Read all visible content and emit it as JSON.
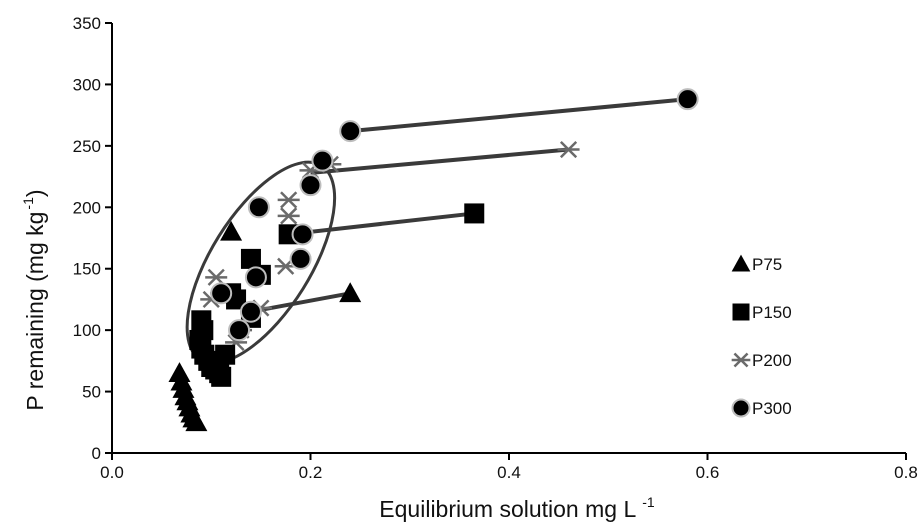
{
  "chart_data": {
    "type": "scatter",
    "xlabel": "Equilibrium solution mg L",
    "xlabel_sup": "-1",
    "ylabel": "P remaining (mg kg",
    "ylabel_sup": "-1",
    "ylabel_close": ")",
    "xlim": [
      0,
      0.8
    ],
    "ylim": [
      0,
      350
    ],
    "x_ticks": [
      "0.0",
      "0.2",
      "0.4",
      "0.6",
      "0.8"
    ],
    "y_ticks": [
      "0",
      "50",
      "100",
      "150",
      "200",
      "250",
      "300",
      "350"
    ],
    "grid": false,
    "legend_position": "right",
    "colors": {
      "marker": "#000000",
      "line": "#3a3a3a",
      "ellipse": "#3a3a3a",
      "star": "#6a6a6a"
    },
    "series": [
      {
        "name": "P75",
        "marker": "triangle",
        "points": [
          [
            0.068,
            65
          ],
          [
            0.07,
            58
          ],
          [
            0.072,
            52
          ],
          [
            0.074,
            46
          ],
          [
            0.076,
            42
          ],
          [
            0.078,
            37
          ],
          [
            0.08,
            32
          ],
          [
            0.082,
            28
          ],
          [
            0.085,
            25
          ],
          [
            0.12,
            180
          ],
          [
            0.24,
            130
          ]
        ]
      },
      {
        "name": "P150",
        "marker": "square",
        "points": [
          [
            0.09,
            108
          ],
          [
            0.092,
            100
          ],
          [
            0.088,
            92
          ],
          [
            0.09,
            85
          ],
          [
            0.093,
            80
          ],
          [
            0.097,
            75
          ],
          [
            0.1,
            70
          ],
          [
            0.104,
            68
          ],
          [
            0.108,
            65
          ],
          [
            0.11,
            62
          ],
          [
            0.114,
            80
          ],
          [
            0.12,
            130
          ],
          [
            0.125,
            125
          ],
          [
            0.14,
            158
          ],
          [
            0.15,
            145
          ],
          [
            0.14,
            110
          ],
          [
            0.178,
            178
          ],
          [
            0.365,
            195
          ]
        ]
      },
      {
        "name": "P200",
        "marker": "star",
        "points": [
          [
            0.1,
            125
          ],
          [
            0.105,
            143
          ],
          [
            0.11,
            130
          ],
          [
            0.125,
            90
          ],
          [
            0.13,
            100
          ],
          [
            0.15,
            118
          ],
          [
            0.175,
            152
          ],
          [
            0.178,
            193
          ],
          [
            0.178,
            206
          ],
          [
            0.2,
            230
          ],
          [
            0.22,
            235
          ],
          [
            0.46,
            247
          ]
        ]
      },
      {
        "name": "P300",
        "marker": "circle",
        "points": [
          [
            0.11,
            130
          ],
          [
            0.128,
            100
          ],
          [
            0.14,
            115
          ],
          [
            0.145,
            143
          ],
          [
            0.148,
            200
          ],
          [
            0.19,
            158
          ],
          [
            0.192,
            178
          ],
          [
            0.2,
            218
          ],
          [
            0.212,
            238
          ],
          [
            0.24,
            262
          ],
          [
            0.58,
            288
          ]
        ]
      }
    ],
    "connector_lines": [
      [
        [
          0.14,
          115
        ],
        [
          0.24,
          130
        ]
      ],
      [
        [
          0.178,
          178
        ],
        [
          0.365,
          195
        ]
      ],
      [
        [
          0.2,
          228
        ],
        [
          0.46,
          247
        ]
      ],
      [
        [
          0.24,
          262
        ],
        [
          0.58,
          288
        ]
      ]
    ],
    "ellipse": {
      "center": [
        0.15,
        155
      ],
      "semi_axes": [
        0.05,
        150
      ],
      "rotation_deg": 32
    }
  }
}
